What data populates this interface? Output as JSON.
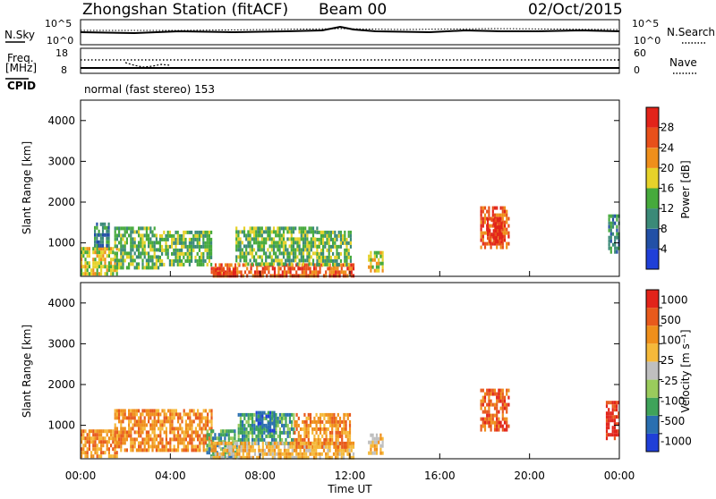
{
  "header": {
    "station": "Zhongshan Station (fitACF)",
    "beam": "Beam 00",
    "date": "02/Oct/2015"
  },
  "strip1": {
    "left_label": "N.Sky",
    "right_label": "N.Search",
    "left_ticks": [
      "10^5",
      "10^0"
    ],
    "right_ticks": [
      "10^5",
      "10^0"
    ]
  },
  "strip2": {
    "left_label_1": "Freq.",
    "left_label_2": "[MHz]",
    "right_label": "Nave",
    "left_ticks": [
      "18",
      "8"
    ],
    "right_ticks": [
      "60",
      "0"
    ]
  },
  "cpid": {
    "label": "CPID",
    "text": "normal (fast stereo) 153"
  },
  "chart_data": [
    {
      "type": "heatmap",
      "name": "power",
      "ylabel": "Slant Range [km]",
      "ylim": [
        180,
        4500
      ],
      "yticks": [
        1000,
        2000,
        3000,
        4000
      ],
      "xlim": [
        0,
        24
      ],
      "colorbar_label": "Power [dB]",
      "colorbar_ticks": [
        "4",
        "8",
        "12",
        "16",
        "20",
        "24",
        "28"
      ],
      "colors": [
        "#1f3fd8",
        "#2250a6",
        "#3b8a78",
        "#46aa3c",
        "#e6d22a",
        "#ef8f1b",
        "#e8501a",
        "#e2241a"
      ],
      "regions": [
        {
          "t0": 0.0,
          "t1": 1.6,
          "r0": 220,
          "r1": 900,
          "level": 4
        },
        {
          "t0": 0.6,
          "t1": 1.3,
          "r0": 900,
          "r1": 1500,
          "level": 2
        },
        {
          "t0": 1.5,
          "t1": 3.5,
          "r0": 400,
          "r1": 1400,
          "level": 3
        },
        {
          "t0": 3.5,
          "t1": 5.8,
          "r0": 450,
          "r1": 1300,
          "level": 3
        },
        {
          "t0": 5.8,
          "t1": 12.2,
          "r0": 230,
          "r1": 500,
          "level": 6
        },
        {
          "t0": 5.9,
          "t1": 6.9,
          "r0": 210,
          "r1": 380,
          "level": 7
        },
        {
          "t0": 6.9,
          "t1": 10.5,
          "r0": 500,
          "r1": 1400,
          "level": 3
        },
        {
          "t0": 10.5,
          "t1": 12.0,
          "r0": 500,
          "r1": 1300,
          "level": 3
        },
        {
          "t0": 12.8,
          "t1": 13.5,
          "r0": 300,
          "r1": 800,
          "level": 4
        },
        {
          "t0": 17.8,
          "t1": 19.1,
          "r0": 900,
          "r1": 1900,
          "level": 6
        },
        {
          "t0": 18.1,
          "t1": 18.8,
          "r0": 1000,
          "r1": 1600,
          "level": 7
        },
        {
          "t0": 23.5,
          "t1": 24.0,
          "r0": 800,
          "r1": 1700,
          "level": 2
        }
      ]
    },
    {
      "type": "heatmap",
      "name": "velocity",
      "ylabel": "Slant Range [km]",
      "ylim": [
        180,
        4500
      ],
      "yticks": [
        1000,
        2000,
        3000,
        4000
      ],
      "xlim": [
        0,
        24
      ],
      "xticks": [
        "00:00",
        "04:00",
        "08:00",
        "12:00",
        "16:00",
        "20:00",
        "00:00"
      ],
      "xlabel": "Time UT",
      "colorbar_label": "Velocity [m s⁻¹]",
      "colorbar_ticks": [
        "1000",
        "500",
        "100",
        "25",
        "-25",
        "-100",
        "-500",
        "-1000"
      ],
      "colors": [
        "#e2241a",
        "#e85a1c",
        "#ef8f1b",
        "#f5b93a",
        "#bfbfbf",
        "#9acb5c",
        "#3fa35a",
        "#2a6fb0",
        "#1f3fd8"
      ],
      "regions": [
        {
          "t0": 0.0,
          "t1": 1.6,
          "r0": 220,
          "r1": 900,
          "level": 2
        },
        {
          "t0": 1.5,
          "t1": 5.8,
          "r0": 400,
          "r1": 1400,
          "level": 2
        },
        {
          "t0": 5.6,
          "t1": 7.0,
          "r0": 200,
          "r1": 900,
          "level": 6
        },
        {
          "t0": 7.0,
          "t1": 9.5,
          "r0": 550,
          "r1": 1300,
          "level": 6
        },
        {
          "t0": 7.8,
          "t1": 8.6,
          "r0": 900,
          "r1": 1350,
          "level": 7
        },
        {
          "t0": 5.8,
          "t1": 12.2,
          "r0": 230,
          "r1": 600,
          "level": 3
        },
        {
          "t0": 9.5,
          "t1": 12.0,
          "r0": 500,
          "r1": 1300,
          "level": 2
        },
        {
          "t0": 12.8,
          "t1": 13.5,
          "r0": 300,
          "r1": 800,
          "level": 3
        },
        {
          "t0": 17.8,
          "t1": 19.1,
          "r0": 900,
          "r1": 1900,
          "level": 1
        },
        {
          "t0": 23.4,
          "t1": 24.0,
          "r0": 700,
          "r1": 1600,
          "level": 0
        }
      ]
    }
  ]
}
